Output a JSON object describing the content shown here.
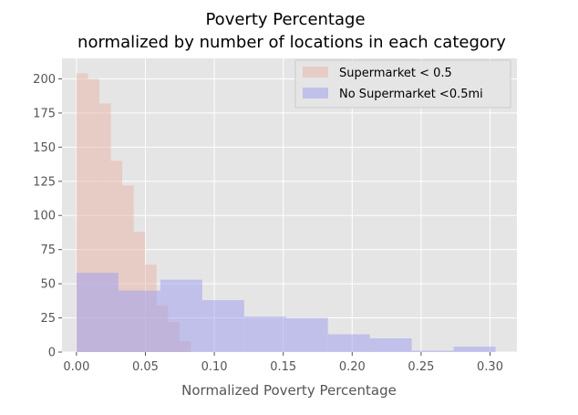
{
  "chart_data": {
    "type": "histogram",
    "title": "Poverty Percentage",
    "subtitle": "normalized by number of locations in each category",
    "xlabel": "Normalized Poverty Percentage",
    "ylabel": "",
    "xlim": [
      -0.0105,
      0.3195
    ],
    "ylim": [
      0,
      215
    ],
    "xticks": [
      0.0,
      0.05,
      0.1,
      0.15,
      0.2,
      0.25,
      0.3
    ],
    "xtick_labels": [
      "0.00",
      "0.05",
      "0.10",
      "0.15",
      "0.20",
      "0.25",
      "0.30"
    ],
    "yticks": [
      0,
      25,
      50,
      75,
      100,
      125,
      150,
      175,
      200
    ],
    "ytick_labels": [
      "0",
      "25",
      "50",
      "75",
      "100",
      "125",
      "150",
      "175",
      "200"
    ],
    "grid": true,
    "legend_position": "top-right",
    "series": [
      {
        "name": "Supermarket < 0.5",
        "color": "#e8b4a3",
        "bin_edges": [
          0.0,
          0.0083,
          0.0166,
          0.0249,
          0.0332,
          0.0415,
          0.0498,
          0.0581,
          0.0664,
          0.0747,
          0.083
        ],
        "values": [
          204,
          200,
          182,
          140,
          122,
          88,
          64,
          34,
          22,
          8
        ]
      },
      {
        "name": "No Supermarket <0.5mi",
        "color": "#9b9cf0",
        "bin_edges": [
          0.0,
          0.0304,
          0.0608,
          0.0912,
          0.1216,
          0.152,
          0.1824,
          0.2128,
          0.2432,
          0.2736,
          0.304
        ],
        "values": [
          58,
          45,
          53,
          38,
          26,
          25,
          13,
          10,
          1,
          4
        ]
      }
    ]
  }
}
